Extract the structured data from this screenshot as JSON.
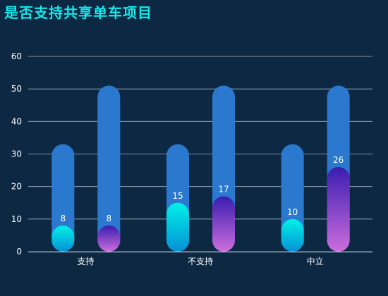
{
  "title": "是否支持共享单车项目",
  "colors": {
    "background": "#0d2843",
    "title": "#13e8ea",
    "track": "#2a79cf",
    "grid": "#aab6c2",
    "axis": "#ffffff",
    "series1_top": "#00f2e6",
    "series1_bottom": "#0590d6",
    "series2_top": "#3a1db0",
    "series2_bottom": "#cc6ddc"
  },
  "chart_data": {
    "type": "bar",
    "title": "是否支持共享单车项目",
    "xlabel": "",
    "ylabel": "",
    "categories": [
      "支持",
      "不支持",
      "中立"
    ],
    "ylim": [
      0,
      60
    ],
    "yticks": [
      0,
      10,
      20,
      30,
      40,
      50,
      60
    ],
    "grid": true,
    "legend": "none",
    "series": [
      {
        "values": [
          8,
          15,
          10
        ],
        "background_track": 33
      },
      {
        "values": [
          8,
          17,
          26
        ],
        "background_track": 51
      }
    ]
  }
}
